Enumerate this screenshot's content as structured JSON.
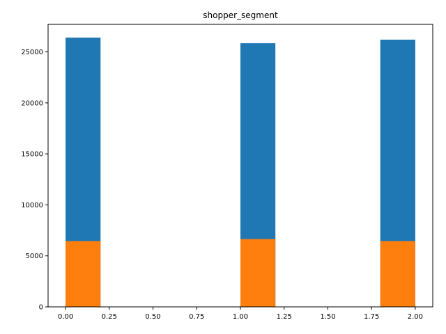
{
  "chart_data": {
    "type": "bar",
    "title": "shopper_segment",
    "xlabel": "",
    "ylabel": "",
    "xlim": [
      -0.1,
      2.1
    ],
    "ylim": [
      0,
      27700
    ],
    "x_ticks": [
      {
        "value": 0.0,
        "label": "0.00"
      },
      {
        "value": 0.25,
        "label": "0.25"
      },
      {
        "value": 0.5,
        "label": "0.50"
      },
      {
        "value": 0.75,
        "label": "0.75"
      },
      {
        "value": 1.0,
        "label": "1.00"
      },
      {
        "value": 1.25,
        "label": "1.25"
      },
      {
        "value": 1.5,
        "label": "1.50"
      },
      {
        "value": 1.75,
        "label": "1.75"
      },
      {
        "value": 2.0,
        "label": "2.00"
      }
    ],
    "y_ticks": [
      {
        "value": 0,
        "label": "0"
      },
      {
        "value": 5000,
        "label": "5000"
      },
      {
        "value": 10000,
        "label": "10000"
      },
      {
        "value": 15000,
        "label": "15000"
      },
      {
        "value": 20000,
        "label": "20000"
      },
      {
        "value": 25000,
        "label": "25000"
      }
    ],
    "series": [
      {
        "color": "#1f77b4",
        "bins": [
          {
            "x0": 0.0,
            "x1": 0.2,
            "value": 26400
          },
          {
            "x0": 1.0,
            "x1": 1.2,
            "value": 25850
          },
          {
            "x0": 1.8,
            "x1": 2.0,
            "value": 26200
          }
        ]
      },
      {
        "color": "#ff7f0e",
        "bins": [
          {
            "x0": 0.0,
            "x1": 0.2,
            "value": 6450
          },
          {
            "x0": 1.0,
            "x1": 1.2,
            "value": 6650
          },
          {
            "x0": 1.8,
            "x1": 2.0,
            "value": 6450
          }
        ]
      }
    ],
    "grid": false,
    "legend": "none"
  }
}
